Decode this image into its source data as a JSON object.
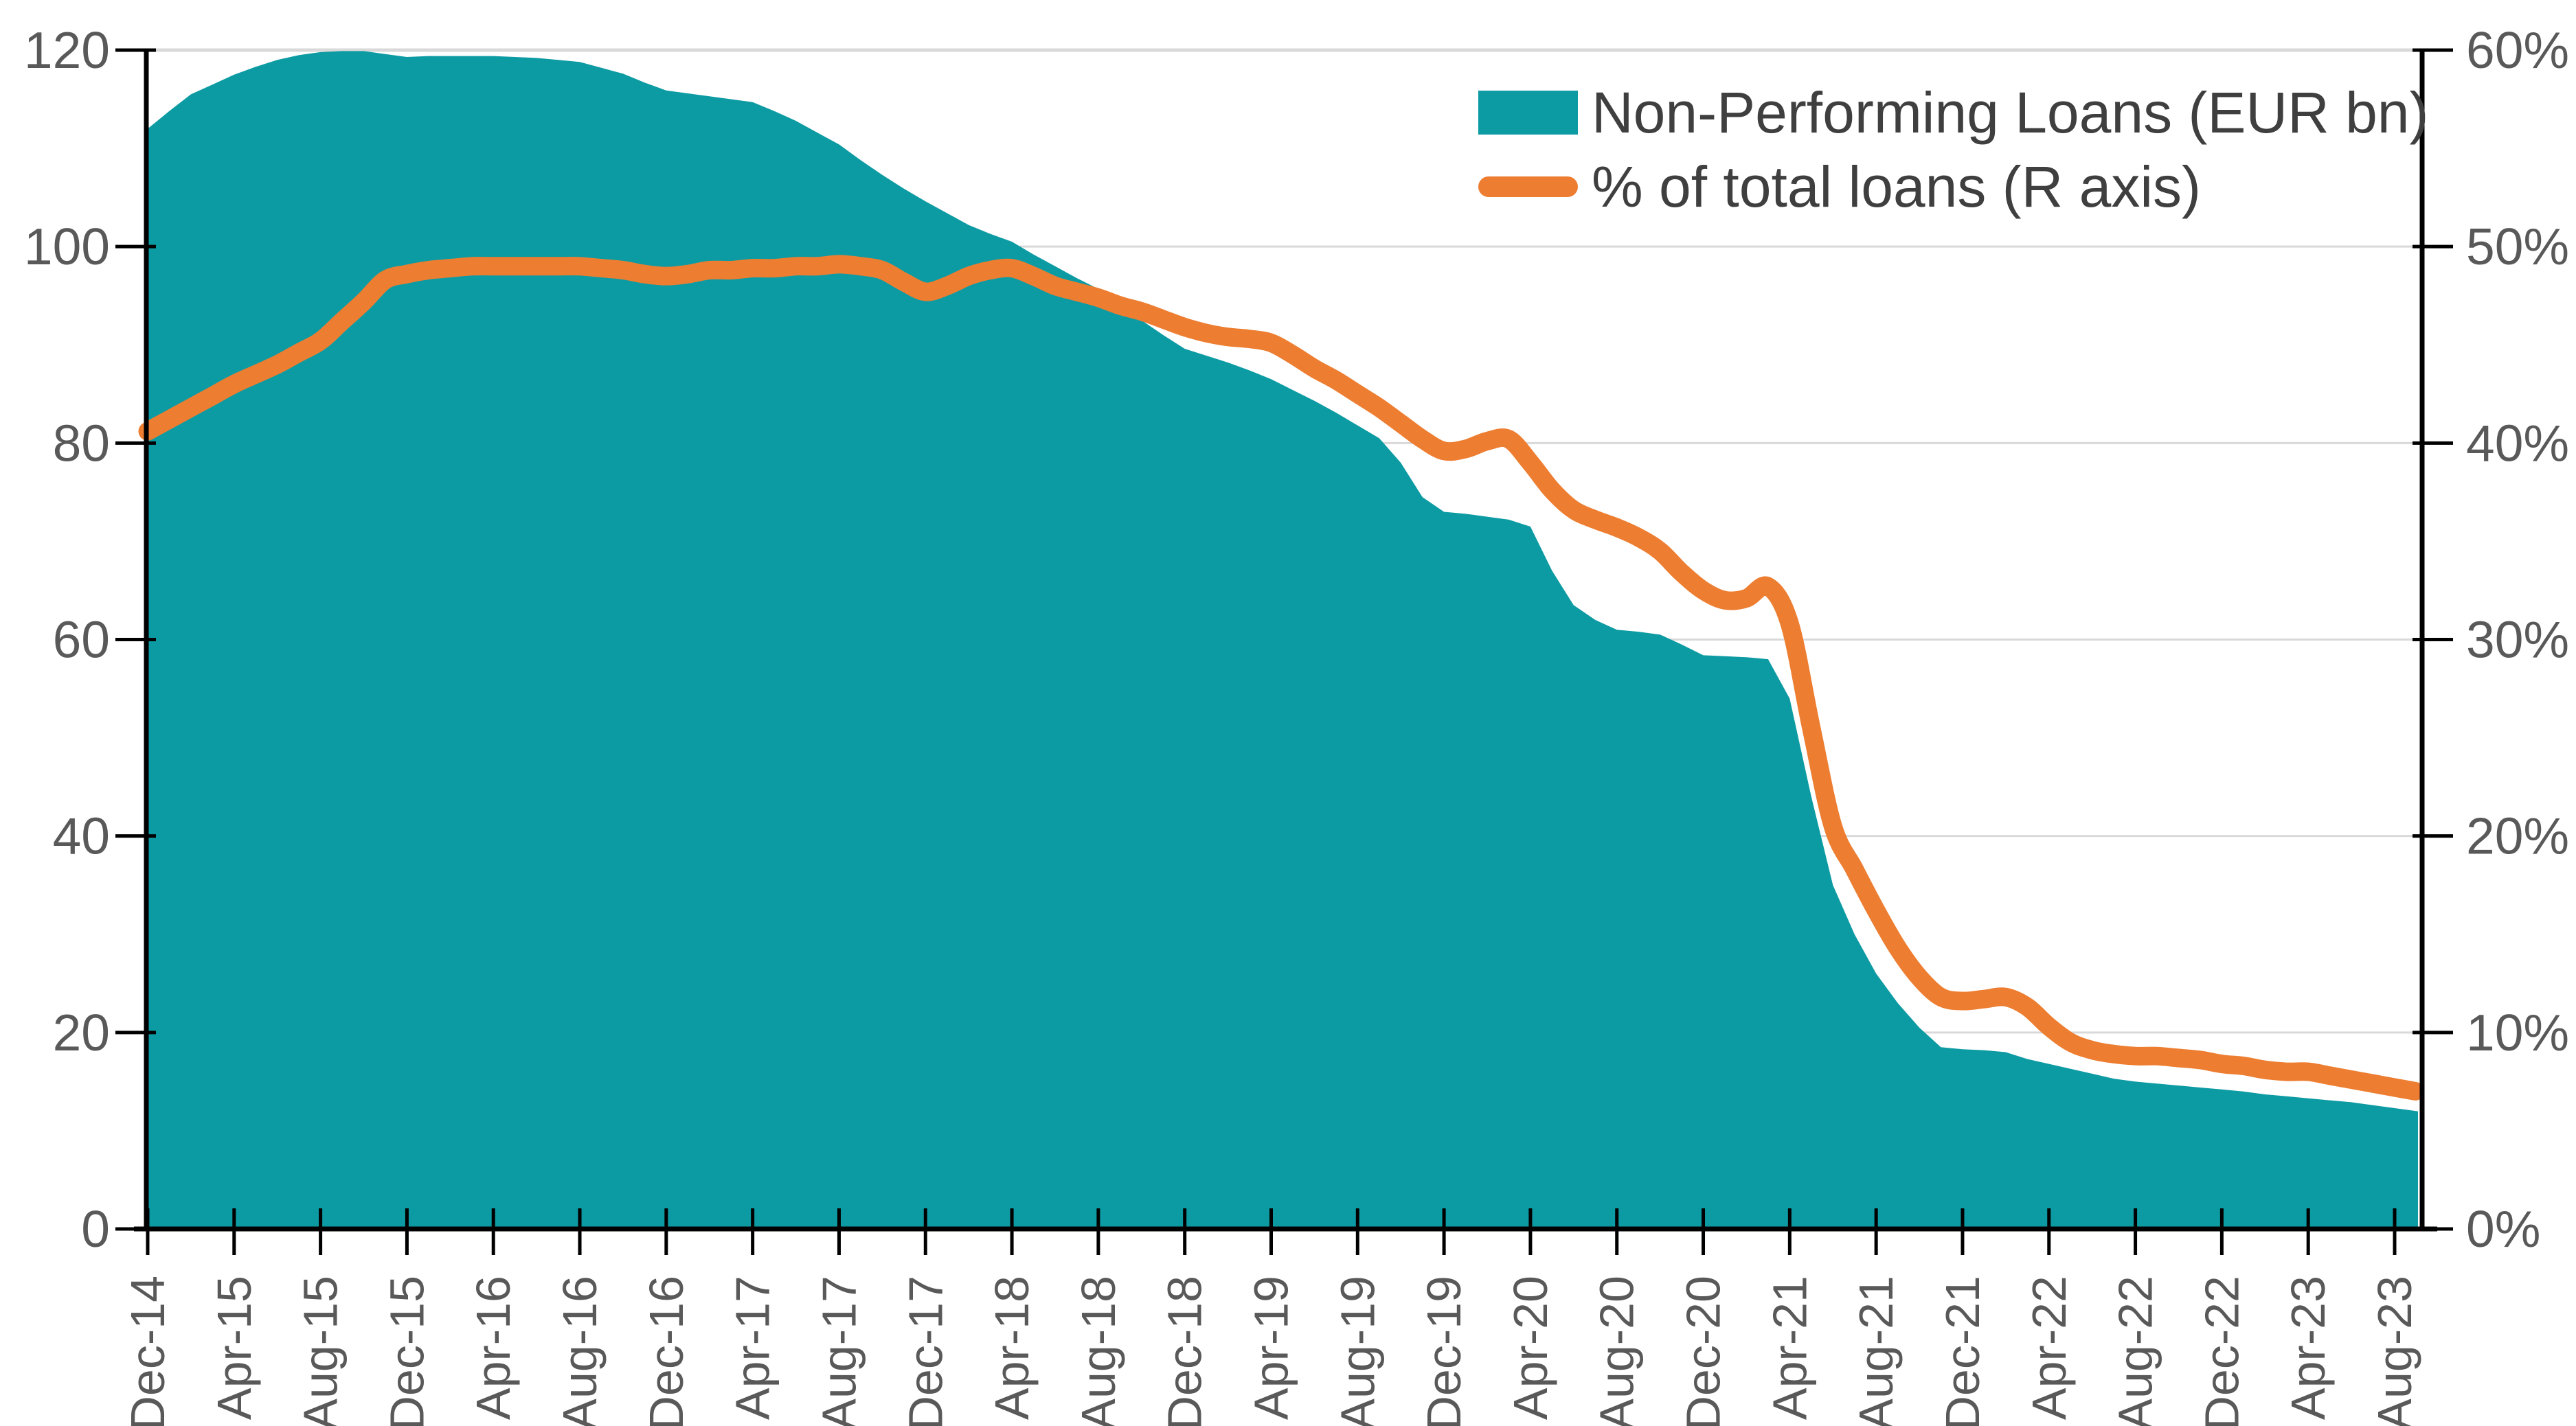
{
  "legend": {
    "items": [
      {
        "label": "Non-Performing Loans (EUR bn)",
        "marker": "rect",
        "color": "#0D9BA3"
      },
      {
        "label": "% of total loans (R axis)",
        "marker": "line",
        "color": "#ED7D31"
      }
    ]
  },
  "colors": {
    "area": "#0D9BA3",
    "line": "#ED7D31",
    "grid": "#D9D9D9",
    "axis": "#000000",
    "tick_label": "#595959",
    "legend_text": "#3F3F3F",
    "background": "#FFFFFF"
  },
  "chart_data": {
    "type": "area",
    "subtype": "dual-axis area + smoothed line",
    "title": "",
    "xlabel": "",
    "ylabel_left": "",
    "ylabel_right": "",
    "grid": true,
    "legend_position": "top-right",
    "x_start": "Dec-14",
    "x_end": "Aug-23",
    "x_frequency": "monthly",
    "x_tick_labels": [
      "Dec-14",
      "Apr-15",
      "Aug-15",
      "Dec-15",
      "Apr-16",
      "Aug-16",
      "Dec-16",
      "Apr-17",
      "Aug-17",
      "Dec-17",
      "Apr-18",
      "Aug-18",
      "Dec-18",
      "Apr-19",
      "Aug-19",
      "Dec-19",
      "Apr-20",
      "Aug-20",
      "Dec-20",
      "Apr-21",
      "Aug-21",
      "Dec-21",
      "Apr-22",
      "Aug-22",
      "Dec-22",
      "Apr-23",
      "Aug-23"
    ],
    "x_tick_positions": [
      0,
      4,
      8,
      12,
      16,
      20,
      24,
      28,
      32,
      36,
      40,
      44,
      48,
      52,
      56,
      60,
      64,
      68,
      72,
      76,
      80,
      84,
      88,
      92,
      96,
      100,
      104
    ],
    "left_axis": {
      "min": 0,
      "max": 120,
      "tick_values": [
        0,
        20,
        40,
        60,
        80,
        100,
        120
      ],
      "tick_labels": [
        "0",
        "20",
        "40",
        "60",
        "80",
        "100",
        "120"
      ]
    },
    "right_axis": {
      "min": 0,
      "max": 60,
      "tick_values": [
        0,
        10,
        20,
        30,
        40,
        50,
        60
      ],
      "tick_labels": [
        "0%",
        "10%",
        "20%",
        "30%",
        "40%",
        "50%",
        "60%"
      ]
    },
    "series": [
      {
        "name": "Non-Performing Loans (EUR bn)",
        "type": "area",
        "axis": "left",
        "color": "#0D9BA3",
        "values": [
          112.0,
          113.8,
          115.5,
          116.5,
          117.5,
          118.3,
          119.0,
          119.5,
          119.8,
          119.9,
          119.9,
          119.6,
          119.3,
          119.4,
          119.4,
          119.4,
          119.4,
          119.3,
          119.2,
          119.0,
          118.8,
          118.2,
          117.6,
          116.7,
          115.9,
          115.6,
          115.3,
          115.0,
          114.7,
          113.8,
          112.8,
          111.6,
          110.4,
          108.8,
          107.3,
          105.9,
          104.6,
          103.4,
          102.2,
          101.3,
          100.5,
          99.2,
          98.0,
          96.8,
          95.7,
          94.1,
          92.5,
          91.0,
          89.6,
          88.9,
          88.2,
          87.4,
          86.5,
          85.4,
          84.3,
          83.1,
          81.8,
          80.5,
          78.0,
          74.5,
          73.0,
          72.8,
          72.5,
          72.2,
          71.5,
          67.0,
          63.5,
          62.0,
          61.0,
          60.8,
          60.5,
          59.5,
          58.4,
          58.3,
          58.2,
          58.0,
          54.0,
          44.0,
          35.0,
          30.0,
          26.0,
          23.0,
          20.5,
          18.5,
          18.3,
          18.2,
          18.0,
          17.3,
          16.8,
          16.3,
          15.8,
          15.3,
          15.0,
          14.8,
          14.6,
          14.4,
          14.2,
          14.0,
          13.7,
          13.5,
          13.3,
          13.1,
          12.9,
          12.6,
          12.3
        ]
      },
      {
        "name": "% of total loans (R axis)",
        "type": "line",
        "axis": "right",
        "color": "#ED7D31",
        "values": [
          40.6,
          41.2,
          41.8,
          42.4,
          43.0,
          43.5,
          44.0,
          44.6,
          45.2,
          46.2,
          47.2,
          48.3,
          48.6,
          48.8,
          48.9,
          49.0,
          49.0,
          49.0,
          49.0,
          49.0,
          49.0,
          48.9,
          48.8,
          48.6,
          48.5,
          48.6,
          48.8,
          48.8,
          48.9,
          48.9,
          49.0,
          49.0,
          49.1,
          49.0,
          48.8,
          48.2,
          47.7,
          48.0,
          48.5,
          48.8,
          48.9,
          48.5,
          48.0,
          47.7,
          47.4,
          47.0,
          46.7,
          46.3,
          45.9,
          45.6,
          45.4,
          45.3,
          45.1,
          44.5,
          43.8,
          43.2,
          42.5,
          41.8,
          41.0,
          40.2,
          39.6,
          39.7,
          40.1,
          40.2,
          39.0,
          37.6,
          36.6,
          36.1,
          35.7,
          35.2,
          34.5,
          33.4,
          32.5,
          32.0,
          32.1,
          32.7,
          30.8,
          25.5,
          20.5,
          18.3,
          16.2,
          14.3,
          12.8,
          11.8,
          11.6,
          11.7,
          11.8,
          11.3,
          10.3,
          9.5,
          9.1,
          8.9,
          8.8,
          8.8,
          8.7,
          8.6,
          8.4,
          8.3,
          8.1,
          8.0,
          8.0,
          7.8,
          7.6,
          7.4,
          7.2
        ]
      }
    ]
  }
}
